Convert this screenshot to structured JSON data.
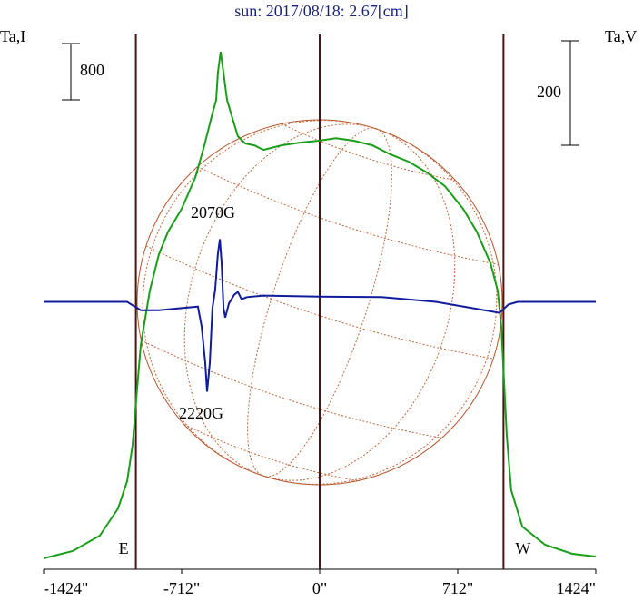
{
  "chart_data": {
    "type": "line",
    "title": "sun: 2017/08/18: 2.67[cm]",
    "y_label": "Ta,I",
    "y2_label": "Ta,V",
    "xlim": [
      -1424,
      1424
    ],
    "xticks": [
      {
        "value": -1424,
        "label": "-1424\""
      },
      {
        "value": -712,
        "label": "-712\""
      },
      {
        "value": 0,
        "label": "0\""
      },
      {
        "value": 712,
        "label": "712\""
      },
      {
        "value": 1424,
        "label": "1424\""
      }
    ],
    "ylim": [
      0,
      7600
    ],
    "y2lim": [
      -512,
      512
    ],
    "scale_bar_y": 800,
    "scale_bar_y2": 200,
    "limbs": [
      {
        "x": -948,
        "label": "E"
      },
      {
        "x": 948,
        "label": "W"
      }
    ],
    "annotations": [
      "2070G",
      "2220G"
    ],
    "series": [
      {
        "name": "Ta,I",
        "color": "#1a9e1a",
        "x": [
          -1424,
          -1274,
          -1134,
          -1040,
          -993,
          -965,
          -946,
          -923,
          -876,
          -829,
          -782,
          -712,
          -641,
          -595,
          -557,
          -534,
          -525,
          -511,
          -496,
          -478,
          -450,
          -422,
          -384,
          -337,
          -290,
          -197,
          -103,
          -9,
          84,
          178,
          272,
          365,
          459,
          553,
          646,
          740,
          810,
          881,
          918,
          937,
          951,
          965,
          988,
          1045,
          1162,
          1302,
          1424
        ],
        "values": [
          155,
          258,
          477,
          864,
          1251,
          1767,
          2412,
          3186,
          3960,
          4476,
          4799,
          5121,
          5573,
          6024,
          6437,
          6669,
          7056,
          7353,
          7056,
          6669,
          6411,
          6153,
          6050,
          6024,
          5960,
          6024,
          6063,
          6089,
          6127,
          6089,
          6024,
          5895,
          5792,
          5637,
          5444,
          5121,
          4799,
          4347,
          3960,
          3444,
          2670,
          1896,
          1122,
          606,
          348,
          219,
          181
        ]
      },
      {
        "name": "Ta,V",
        "color": "#101c9c",
        "axis": "y2",
        "x": [
          -1424,
          -993,
          -923,
          -829,
          -712,
          -628,
          -609,
          -590,
          -581,
          -567,
          -553,
          -539,
          -525,
          -515,
          -506,
          -496,
          -487,
          -468,
          -440,
          -422,
          -403,
          -375,
          -290,
          0,
          319,
          600,
          787,
          927,
          974,
          1021,
          1424
        ],
        "values": [
          0,
          0,
          -16,
          -16,
          -12,
          -9,
          -47,
          -117,
          -172,
          -117,
          -12,
          23,
          92,
          120,
          75,
          -12,
          -30,
          -3,
          14,
          19,
          5,
          9,
          12,
          10,
          9,
          0,
          -12,
          -21,
          -5,
          0,
          0
        ]
      }
    ]
  }
}
